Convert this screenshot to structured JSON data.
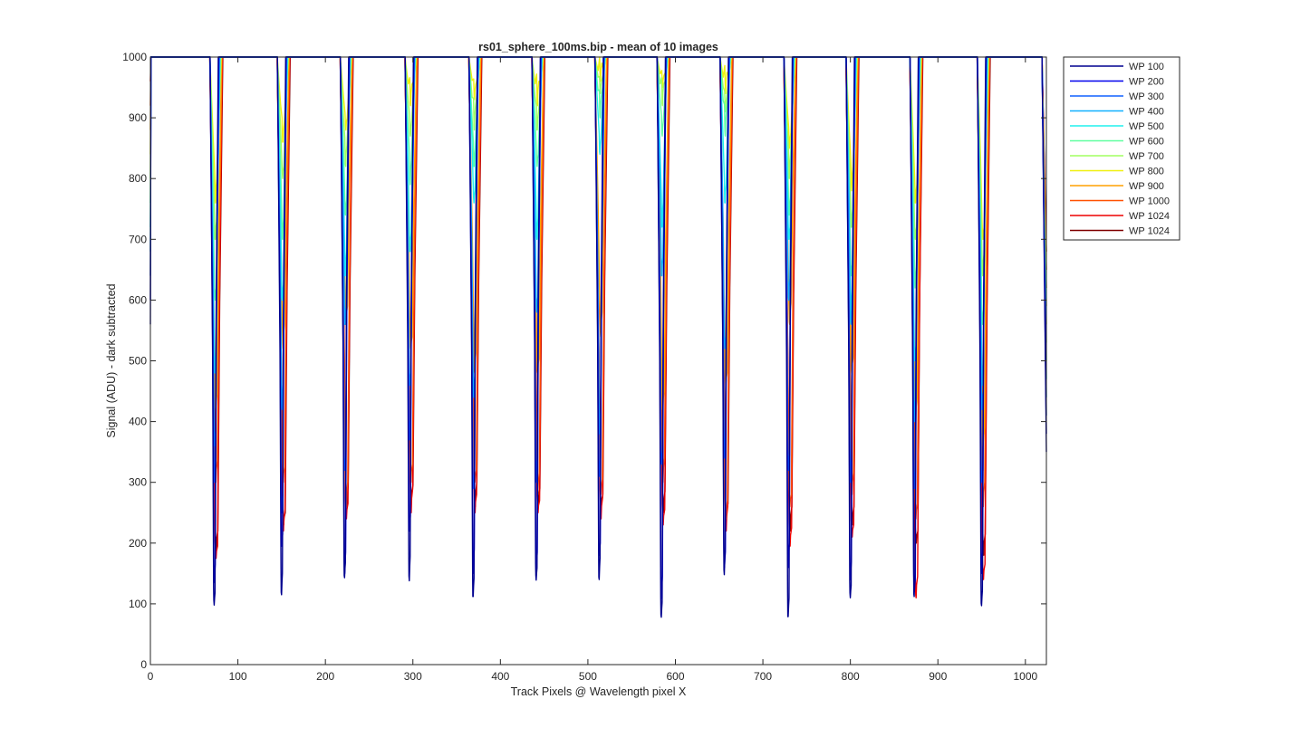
{
  "chart_data": {
    "type": "line",
    "title": "rs01_sphere_100ms.bip - mean of 10 images",
    "xlabel": "Track Pixels @ Wavelength pixel X",
    "ylabel": "Signal (ADU) - dark subtracted",
    "xlim": [
      0,
      1024
    ],
    "ylim": [
      0,
      1000
    ],
    "xticks": [
      0,
      100,
      200,
      300,
      400,
      500,
      600,
      700,
      800,
      900,
      1000
    ],
    "yticks": [
      0,
      100,
      200,
      300,
      400,
      500,
      600,
      700,
      800,
      900,
      1000
    ],
    "grid": false,
    "legend_position": "outside-top-right",
    "dip_centers": [
      74,
      151,
      223,
      297,
      370,
      442,
      514,
      585,
      657,
      730,
      801,
      874,
      951
    ],
    "series": [
      {
        "name": "WP 100",
        "color": "#00008f",
        "dip_minima": [
          98,
          115,
          143,
          138,
          112,
          139,
          140,
          78,
          148,
          79,
          110,
          112,
          97
        ]
      },
      {
        "name": "WP 200",
        "color": "#0000ee",
        "dip_minima": [
          135,
          195,
          150,
          220,
          150,
          155,
          180,
          110,
          160,
          160,
          140,
          120,
          150
        ]
      },
      {
        "name": "WP 300",
        "color": "#1060ff",
        "dip_minima": [
          300,
          250,
          320,
          370,
          290,
          300,
          310,
          330,
          340,
          320,
          300,
          290,
          300
        ]
      },
      {
        "name": "WP 400",
        "color": "#10b0ff",
        "dip_minima": [
          360,
          420,
          560,
          460,
          440,
          580,
          380,
          640,
          520,
          600,
          560,
          400,
          420
        ]
      },
      {
        "name": "WP 500",
        "color": "#20f0ee",
        "dip_minima": [
          480,
          600,
          640,
          680,
          760,
          700,
          840,
          720,
          760,
          700,
          580,
          500,
          460
        ]
      },
      {
        "name": "WP 600",
        "color": "#60ffa0",
        "dip_minima": [
          600,
          700,
          740,
          790,
          820,
          820,
          900,
          870,
          870,
          740,
          640,
          620,
          560
        ]
      },
      {
        "name": "WP 700",
        "color": "#a0ff60",
        "dip_minima": [
          700,
          800,
          820,
          870,
          880,
          880,
          940,
          920,
          910,
          800,
          720,
          700,
          640
        ]
      },
      {
        "name": "WP 800",
        "color": "#f0f010",
        "dip_minima": [
          760,
          860,
          880,
          920,
          930,
          920,
          960,
          950,
          940,
          850,
          780,
          760,
          700
        ]
      },
      {
        "name": "WP 900",
        "color": "#ffa000",
        "dip_minima": [
          420,
          520,
          560,
          520,
          480,
          480,
          540,
          420,
          460,
          560,
          480,
          400,
          360
        ]
      },
      {
        "name": "WP 1000",
        "color": "#ff5000",
        "dip_minima": [
          300,
          300,
          260,
          300,
          300,
          280,
          280,
          300,
          240,
          260,
          280,
          240,
          260
        ]
      },
      {
        "name": "WP 1024",
        "color": "#ee0000",
        "dip_minima": [
          175,
          220,
          240,
          250,
          250,
          250,
          240,
          230,
          220,
          195,
          210,
          110,
          140
        ]
      },
      {
        "name": "WP 1024",
        "color": "#800000",
        "dip_minima": [
          190,
          230,
          260,
          270,
          260,
          260,
          260,
          250,
          240,
          220,
          230,
          200,
          180
        ]
      }
    ]
  }
}
